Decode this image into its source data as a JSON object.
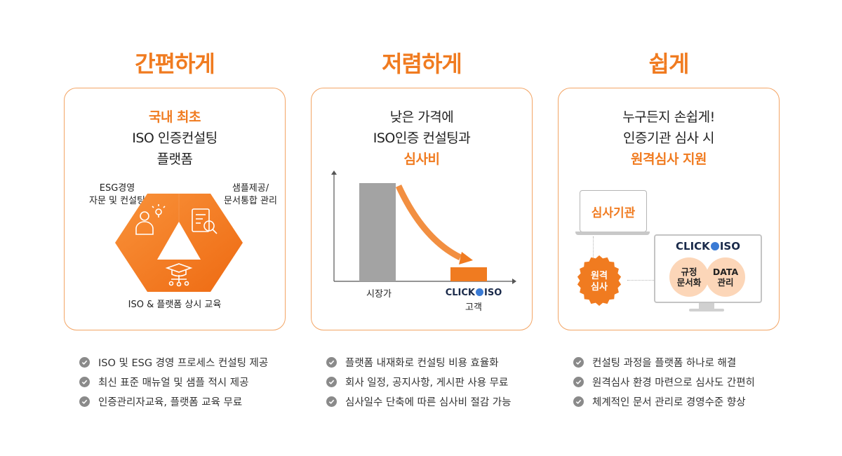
{
  "columns": [
    {
      "title": "간편하게",
      "card": {
        "line1": "국내 최초",
        "line2": "ISO 인증컨설팅",
        "line3": "플랫폼",
        "label_esg_1": "ESG경영",
        "label_esg_2": "자문 및 컨설팅",
        "label_sample_1": "샘플제공/",
        "label_sample_2": "문서통합 관리",
        "label_edu": "ISO & 플랫폼 상시 교육"
      },
      "bullets": [
        "ISO 및 ESG 경영 프로세스 컨설팅 제공",
        "최신 표준 매뉴얼 및 샘플 적시 제공",
        "인증관리자교육, 플랫폼 교육 무료"
      ]
    },
    {
      "title": "저렴하게",
      "card": {
        "line1": "낮은 가격에",
        "line2": "ISO인증 컨설팅과",
        "line3": "심사비",
        "bar_market_label": "시장가",
        "bar_click_brand_left": "CLICK",
        "bar_click_brand_right": "ISO",
        "bar_click_label": "고객"
      },
      "bullets": [
        "플랫폼 내재화로 컨설팅 비용 효율화",
        "회사 일정, 공지사항, 게시판 사용 무료",
        "심사일수 단축에 따른 심사비 절감 가능"
      ]
    },
    {
      "title": "쉽게",
      "card": {
        "line1": "누구든지 손쉽게!",
        "line2": "인증기관 심사 시",
        "line3": "원격심사 지원",
        "laptop_label": "심사기관",
        "badge_1": "원격",
        "badge_2": "심사",
        "monitor_brand_left": "CLICK",
        "monitor_brand_right": "ISO",
        "circle1_1": "규정",
        "circle1_2": "문서화",
        "circle2_1": "DATA",
        "circle2_2": "관리"
      },
      "bullets": [
        "컨설팅 과정을 플랫폼 하나로 해결",
        "원격심사 환경 마련으로 심사도 간편히",
        "체계적인 문서 관리로 경영수준 향상"
      ]
    }
  ],
  "colors": {
    "accent": "#f07b20",
    "border": "#f3a565",
    "gray_bar": "#a3a3a3",
    "check": "#8a8a8a",
    "navy": "#1a2a4a"
  },
  "icons": [
    "person-lightbulb-icon",
    "document-magnifier-icon",
    "graduation-cap-network-icon",
    "check-circle-icon",
    "globe-icon",
    "laptop-icon",
    "monitor-icon",
    "seal-badge-icon"
  ]
}
